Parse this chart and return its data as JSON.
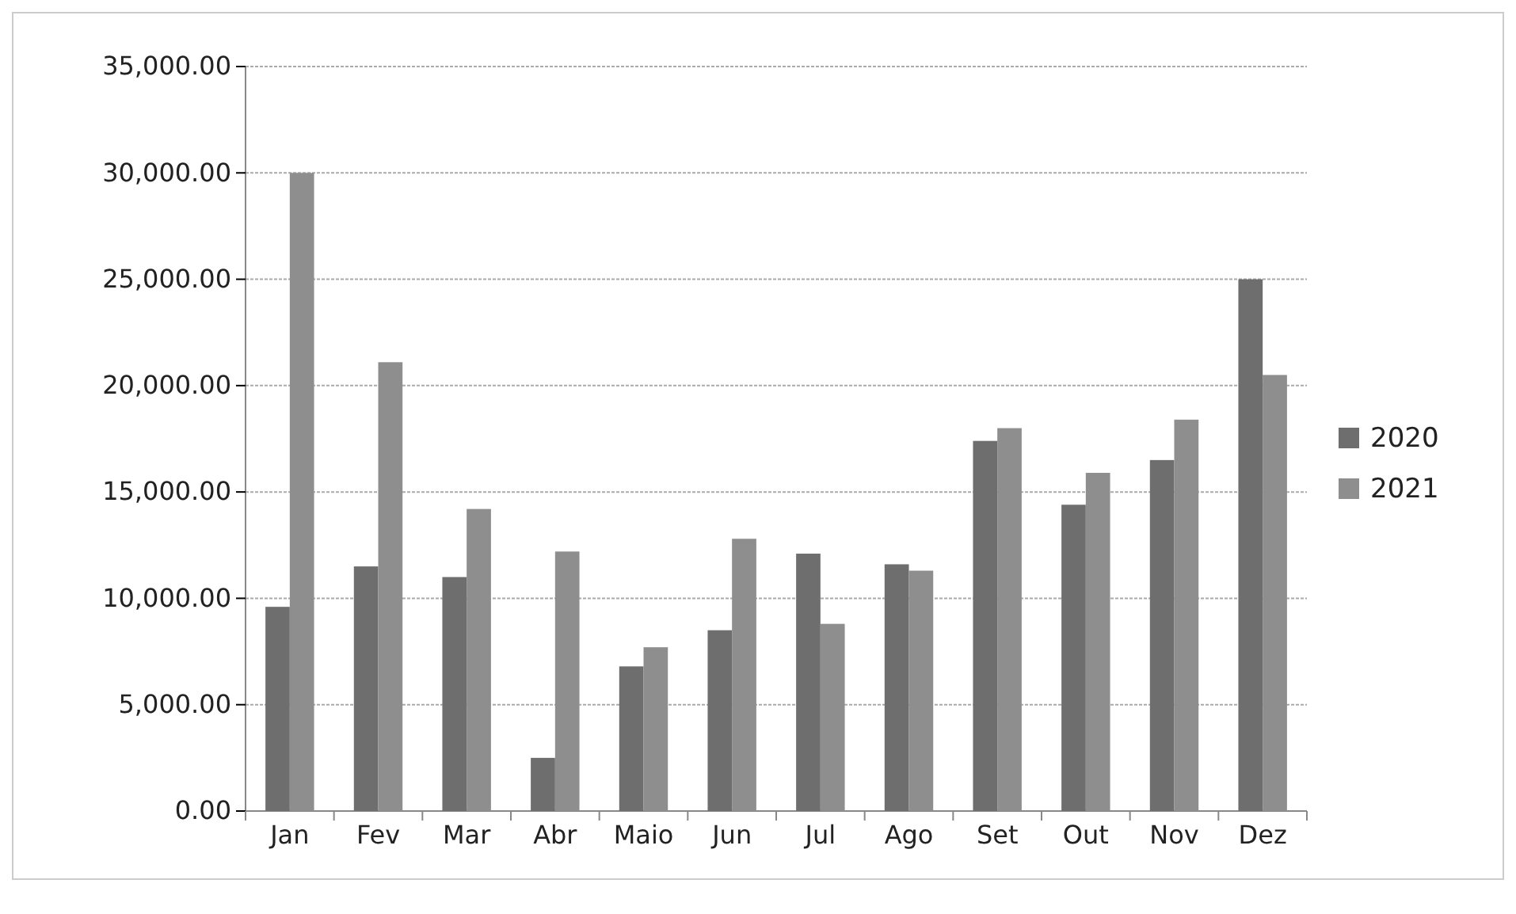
{
  "chart_data": {
    "type": "bar",
    "categories": [
      "Jan",
      "Fev",
      "Mar",
      "Abr",
      "Maio",
      "Jun",
      "Jul",
      "Ago",
      "Set",
      "Out",
      "Nov",
      "Dez"
    ],
    "series": [
      {
        "name": "2020",
        "color": "#6e6e6e",
        "values": [
          9600,
          11500,
          11000,
          2500,
          6800,
          8500,
          12100,
          11600,
          17400,
          14400,
          16500,
          25000
        ]
      },
      {
        "name": "2021",
        "color": "#8e8e8e",
        "values": [
          30000,
          21100,
          14200,
          12200,
          7700,
          12800,
          8800,
          11300,
          18000,
          15900,
          18400,
          20500
        ]
      }
    ],
    "ylim": [
      0,
      35000
    ],
    "yticks": [
      {
        "value": 0,
        "label": "0.00"
      },
      {
        "value": 5000,
        "label": "5,000.00"
      },
      {
        "value": 10000,
        "label": "10,000.00"
      },
      {
        "value": 15000,
        "label": "15,000.00"
      },
      {
        "value": 20000,
        "label": "20,000.00"
      },
      {
        "value": 25000,
        "label": "25,000.00"
      },
      {
        "value": 30000,
        "label": "30,000.00"
      },
      {
        "value": 35000,
        "label": "35,000.00"
      }
    ],
    "grid": "y",
    "legend": "right"
  }
}
